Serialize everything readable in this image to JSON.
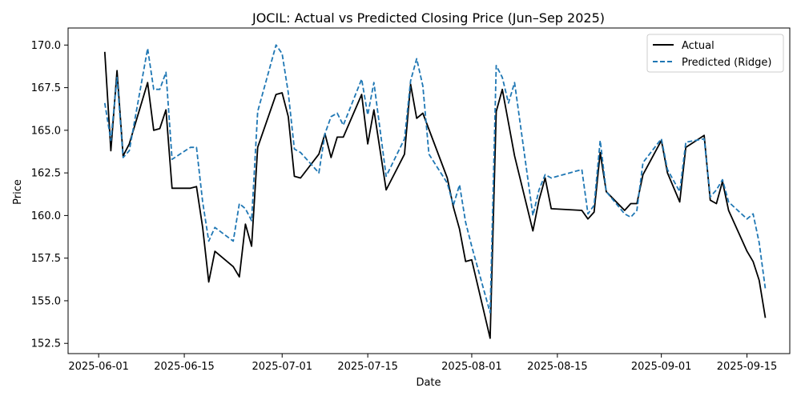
{
  "chart_data": {
    "type": "line",
    "title": "JOCIL: Actual vs Predicted Closing Price (Jun–Sep 2025)",
    "xlabel": "Date",
    "ylabel": "Price",
    "xlim": [
      "2025-05-27",
      "2025-09-22"
    ],
    "ylim": [
      151.9,
      171.0
    ],
    "x_ticks": [
      "2025-06-01",
      "2025-06-15",
      "2025-07-01",
      "2025-07-15",
      "2025-08-01",
      "2025-08-15",
      "2025-09-01",
      "2025-09-15"
    ],
    "y_ticks": [
      152.5,
      155.0,
      157.5,
      160.0,
      162.5,
      165.0,
      167.5,
      170.0
    ],
    "y_tick_labels": [
      "152.5",
      "155.0",
      "157.5",
      "160.0",
      "162.5",
      "165.0",
      "167.5",
      "170.0"
    ],
    "grid": false,
    "legend_position": "top-right",
    "series": [
      {
        "name": "Actual",
        "color": "#000000",
        "style": "solid",
        "points": [
          [
            "2025-06-02",
            169.6
          ],
          [
            "2025-06-03",
            163.8
          ],
          [
            "2025-06-04",
            168.5
          ],
          [
            "2025-06-05",
            163.5
          ],
          [
            "2025-06-06",
            164.2
          ],
          [
            "2025-06-09",
            167.8
          ],
          [
            "2025-06-10",
            165.0
          ],
          [
            "2025-06-11",
            165.1
          ],
          [
            "2025-06-12",
            166.2
          ],
          [
            "2025-06-13",
            161.6
          ],
          [
            "2025-06-16",
            161.6
          ],
          [
            "2025-06-17",
            161.7
          ],
          [
            "2025-06-18",
            159.3
          ],
          [
            "2025-06-19",
            156.1
          ],
          [
            "2025-06-20",
            157.9
          ],
          [
            "2025-06-23",
            157.0
          ],
          [
            "2025-06-24",
            156.4
          ],
          [
            "2025-06-25",
            159.5
          ],
          [
            "2025-06-26",
            158.2
          ],
          [
            "2025-06-27",
            164.0
          ],
          [
            "2025-06-30",
            167.1
          ],
          [
            "2025-07-01",
            167.2
          ],
          [
            "2025-07-02",
            165.8
          ],
          [
            "2025-07-03",
            162.3
          ],
          [
            "2025-07-04",
            162.2
          ],
          [
            "2025-07-07",
            163.6
          ],
          [
            "2025-07-08",
            164.8
          ],
          [
            "2025-07-09",
            163.4
          ],
          [
            "2025-07-10",
            164.6
          ],
          [
            "2025-07-11",
            164.6
          ],
          [
            "2025-07-14",
            167.1
          ],
          [
            "2025-07-15",
            164.2
          ],
          [
            "2025-07-16",
            166.2
          ],
          [
            "2025-07-18",
            161.5
          ],
          [
            "2025-07-21",
            163.6
          ],
          [
            "2025-07-22",
            167.7
          ],
          [
            "2025-07-23",
            165.7
          ],
          [
            "2025-07-24",
            166.0
          ],
          [
            "2025-07-28",
            162.2
          ],
          [
            "2025-07-29",
            160.5
          ],
          [
            "2025-07-30",
            159.2
          ],
          [
            "2025-07-31",
            157.3
          ],
          [
            "2025-08-01",
            157.4
          ],
          [
            "2025-08-04",
            152.8
          ],
          [
            "2025-08-05",
            166.1
          ],
          [
            "2025-08-06",
            167.4
          ],
          [
            "2025-08-08",
            163.5
          ],
          [
            "2025-08-11",
            159.1
          ],
          [
            "2025-08-12",
            160.9
          ],
          [
            "2025-08-13",
            162.2
          ],
          [
            "2025-08-14",
            160.4
          ],
          [
            "2025-08-19",
            160.3
          ],
          [
            "2025-08-20",
            159.8
          ],
          [
            "2025-08-21",
            160.2
          ],
          [
            "2025-08-22",
            163.7
          ],
          [
            "2025-08-23",
            161.4
          ],
          [
            "2025-08-26",
            160.3
          ],
          [
            "2025-08-27",
            160.7
          ],
          [
            "2025-08-28",
            160.7
          ],
          [
            "2025-08-29",
            162.4
          ],
          [
            "2025-09-01",
            164.4
          ],
          [
            "2025-09-02",
            162.5
          ],
          [
            "2025-09-04",
            160.8
          ],
          [
            "2025-09-05",
            164.0
          ],
          [
            "2025-09-08",
            164.7
          ],
          [
            "2025-09-09",
            160.9
          ],
          [
            "2025-09-10",
            160.7
          ],
          [
            "2025-09-11",
            162.0
          ],
          [
            "2025-09-12",
            160.3
          ],
          [
            "2025-09-15",
            157.9
          ],
          [
            "2025-09-16",
            157.3
          ],
          [
            "2025-09-17",
            156.2
          ],
          [
            "2025-09-18",
            154.0
          ]
        ]
      },
      {
        "name": "Predicted (Ridge)",
        "color": "#1f77b4",
        "style": "dashed",
        "points": [
          [
            "2025-06-02",
            166.6
          ],
          [
            "2025-06-03",
            164.4
          ],
          [
            "2025-06-04",
            168.1
          ],
          [
            "2025-06-05",
            163.4
          ],
          [
            "2025-06-06",
            163.8
          ],
          [
            "2025-06-09",
            169.8
          ],
          [
            "2025-06-10",
            167.4
          ],
          [
            "2025-06-11",
            167.4
          ],
          [
            "2025-06-12",
            168.4
          ],
          [
            "2025-06-13",
            163.3
          ],
          [
            "2025-06-16",
            164.0
          ],
          [
            "2025-06-17",
            164.0
          ],
          [
            "2025-06-18",
            160.8
          ],
          [
            "2025-06-19",
            158.5
          ],
          [
            "2025-06-20",
            159.3
          ],
          [
            "2025-06-23",
            158.5
          ],
          [
            "2025-06-24",
            160.7
          ],
          [
            "2025-06-25",
            160.4
          ],
          [
            "2025-06-26",
            159.7
          ],
          [
            "2025-06-27",
            166.1
          ],
          [
            "2025-06-30",
            170.0
          ],
          [
            "2025-07-01",
            169.5
          ],
          [
            "2025-07-02",
            167.2
          ],
          [
            "2025-07-03",
            163.9
          ],
          [
            "2025-07-04",
            163.7
          ],
          [
            "2025-07-07",
            162.5
          ],
          [
            "2025-07-08",
            164.8
          ],
          [
            "2025-07-09",
            165.8
          ],
          [
            "2025-07-10",
            166.0
          ],
          [
            "2025-07-11",
            165.3
          ],
          [
            "2025-07-14",
            168.0
          ],
          [
            "2025-07-15",
            165.9
          ],
          [
            "2025-07-16",
            167.8
          ],
          [
            "2025-07-18",
            162.3
          ],
          [
            "2025-07-21",
            164.5
          ],
          [
            "2025-07-22",
            167.9
          ],
          [
            "2025-07-23",
            169.2
          ],
          [
            "2025-07-24",
            167.6
          ],
          [
            "2025-07-25",
            163.6
          ],
          [
            "2025-07-28",
            161.9
          ],
          [
            "2025-07-29",
            160.6
          ],
          [
            "2025-07-30",
            161.8
          ],
          [
            "2025-07-31",
            159.6
          ],
          [
            "2025-08-01",
            158.2
          ],
          [
            "2025-08-04",
            154.3
          ],
          [
            "2025-08-05",
            168.8
          ],
          [
            "2025-08-06",
            168.1
          ],
          [
            "2025-08-07",
            166.6
          ],
          [
            "2025-08-08",
            167.8
          ],
          [
            "2025-08-11",
            160.0
          ],
          [
            "2025-08-12",
            161.5
          ],
          [
            "2025-08-13",
            162.4
          ],
          [
            "2025-08-14",
            162.2
          ],
          [
            "2025-08-19",
            162.7
          ],
          [
            "2025-08-20",
            160.1
          ],
          [
            "2025-08-21",
            160.6
          ],
          [
            "2025-08-22",
            164.4
          ],
          [
            "2025-08-23",
            161.4
          ],
          [
            "2025-08-26",
            160.1
          ],
          [
            "2025-08-27",
            159.9
          ],
          [
            "2025-08-28",
            160.3
          ],
          [
            "2025-08-29",
            163.1
          ],
          [
            "2025-09-01",
            164.5
          ],
          [
            "2025-09-02",
            162.7
          ],
          [
            "2025-09-04",
            161.4
          ],
          [
            "2025-09-05",
            164.3
          ],
          [
            "2025-09-08",
            164.5
          ],
          [
            "2025-09-09",
            161.1
          ],
          [
            "2025-09-10",
            161.5
          ],
          [
            "2025-09-11",
            162.1
          ],
          [
            "2025-09-12",
            160.8
          ],
          [
            "2025-09-15",
            159.8
          ],
          [
            "2025-09-16",
            160.1
          ],
          [
            "2025-09-17",
            158.4
          ],
          [
            "2025-09-18",
            155.7
          ]
        ]
      }
    ]
  }
}
